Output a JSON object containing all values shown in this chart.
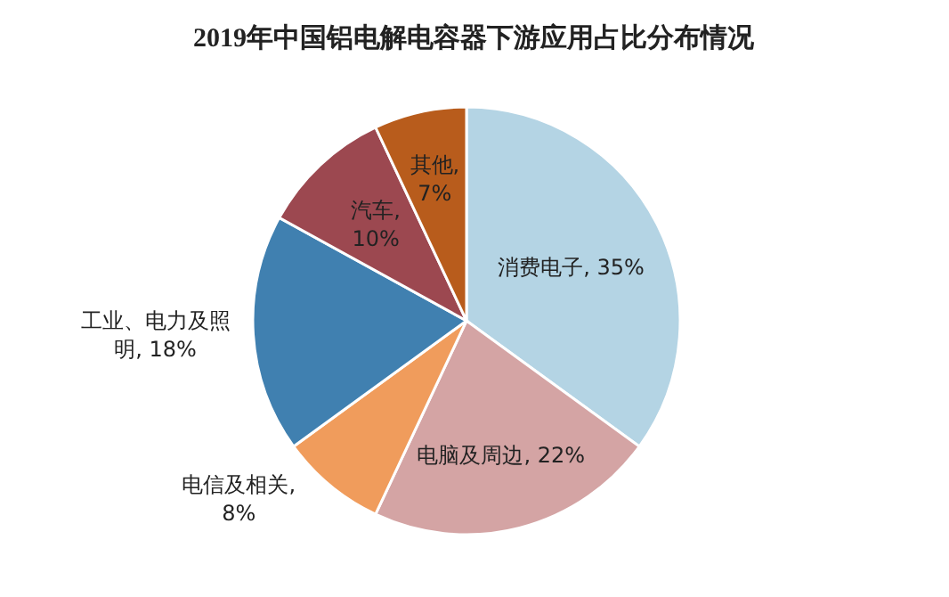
{
  "chart_data": {
    "type": "pie",
    "title": "2019年中国铝电解电容器下游应用占比分布情况",
    "categories": [
      "消费电子",
      "电脑及周边",
      "电信及相关",
      "工业、电力及照明",
      "汽车",
      "其他"
    ],
    "values": [
      35,
      22,
      8,
      18,
      10,
      7
    ],
    "value_labels": [
      ", 35%",
      ", 22%",
      ", 8%",
      ", 18%",
      ", 10%",
      ", 7%"
    ],
    "colors": [
      "#b4d4e4",
      "#d4a4a4",
      "#f09c5c",
      "#4080b0",
      "#9c4850",
      "#b85c1c"
    ]
  }
}
